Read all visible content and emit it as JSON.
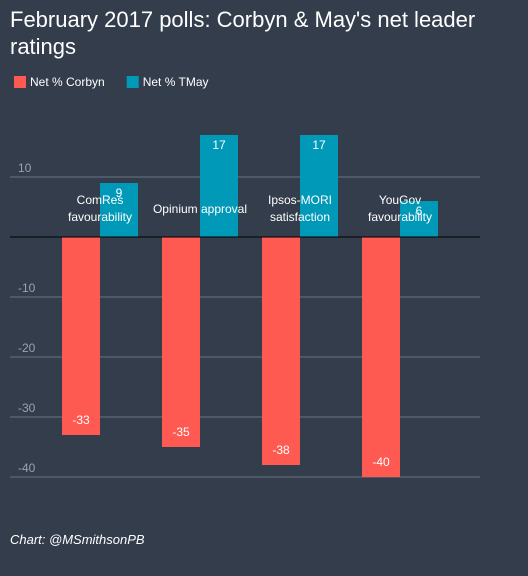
{
  "chart_data": {
    "type": "bar",
    "title": "February 2017 polls: Corbyn & May's net leader ratings",
    "categories": [
      "ComRes favourability",
      "Opinium approval",
      "Ipsos-MORI satisfaction",
      "YouGov favourability"
    ],
    "series": [
      {
        "name": "Net % Corbyn",
        "color": "#ff5a52",
        "values": [
          -33,
          -35,
          -38,
          -40
        ]
      },
      {
        "name": "Net % TMay",
        "color": "#0099b8",
        "values": [
          9,
          17,
          17,
          6
        ]
      }
    ],
    "ylim": [
      -42,
      18
    ],
    "yticks": [
      10,
      -10,
      -20,
      -30,
      -40
    ],
    "grid": true,
    "legend": "top-left",
    "source": "Chart: @MSmithsonPB"
  }
}
